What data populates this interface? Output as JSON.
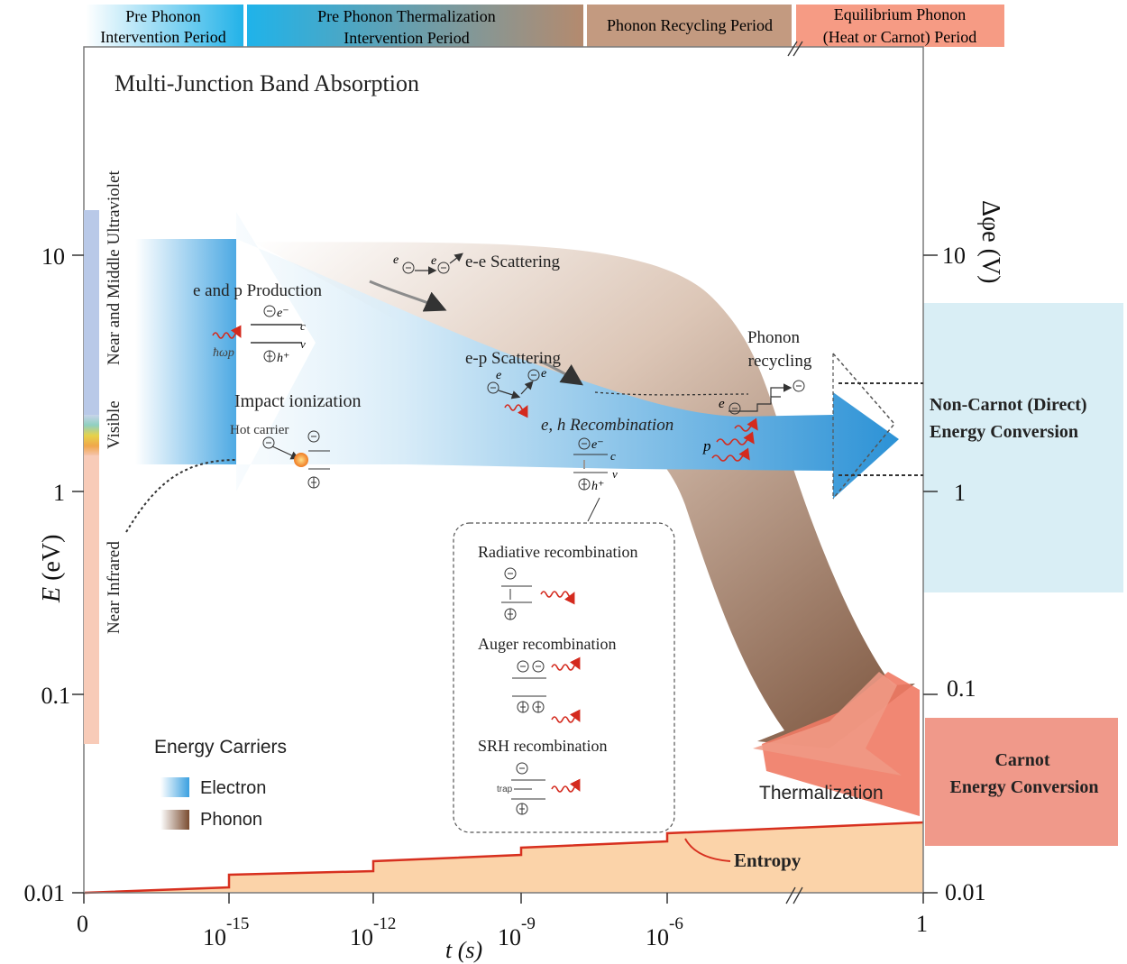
{
  "periods": [
    {
      "line1": "Pre Phonon",
      "line2": "Intervention Period"
    },
    {
      "line1": "Pre Phonon Thermalization",
      "line2": "Intervention Period"
    },
    {
      "line1": "Phonon Recycling Period",
      "line2": ""
    },
    {
      "line1": "Equilibrium Phonon",
      "line2": "(Heat or Carnot) Period"
    }
  ],
  "title": "Multi-Junction Band Absorption",
  "y_axis": {
    "label": "E (eV)",
    "label_var": "E",
    "label_unit": "(eV)",
    "ticks": [
      "10",
      "1",
      "0.1",
      "0.01"
    ]
  },
  "y2_axis": {
    "label": "Δφe (V)",
    "ticks": [
      "10",
      "1",
      "0.1",
      "0.01"
    ]
  },
  "x_axis": {
    "label": "t (s)",
    "ticks": [
      {
        "base": "0",
        "exp": ""
      },
      {
        "base": "10",
        "exp": "-15"
      },
      {
        "base": "10",
        "exp": "-12"
      },
      {
        "base": "10",
        "exp": "-9"
      },
      {
        "base": "10",
        "exp": "-6"
      },
      {
        "base": "1",
        "exp": ""
      }
    ]
  },
  "spectrum_bands": {
    "uv": "Near and Middle Ultraviolet",
    "visible": "Visible",
    "ir": "Near Infrared"
  },
  "labels": {
    "production": "e and p Production",
    "impact": "Impact ionization",
    "hot_carrier": "Hot carrier",
    "ee": "e-e Scattering",
    "ep": "e-p Scattering",
    "eh_recomb": "e, h Recombination",
    "phonon_recycling_1": "Phonon",
    "phonon_recycling_2": "recycling",
    "thermalization": "Thermalization",
    "entropy": "Entropy",
    "hw": "ħωp",
    "band_c": "c",
    "band_v": "v",
    "e_minus": "e⁻",
    "h_plus": "h⁺",
    "p_label": "p",
    "e_label": "e",
    "trap": "trap"
  },
  "recombination_box": {
    "radiative": "Radiative recombination",
    "auger": "Auger recombination",
    "srh": "SRH recombination"
  },
  "legend": {
    "title": "Energy Carriers",
    "items": [
      {
        "label": "Electron",
        "color": "#3a9ede"
      },
      {
        "label": "Phonon",
        "color": "#8a5a3a"
      }
    ]
  },
  "right_boxes": {
    "noncarnot_1": "Non-Carnot (Direct)",
    "noncarnot_2": "Energy Conversion",
    "carnot_1": "Carnot",
    "carnot_2": "Energy Conversion"
  },
  "colors": {
    "period1": "#2bb6e8",
    "period3": "#c3967a",
    "period4": "#f59c84",
    "electron": "#2f95d8",
    "phonon": "#7c4f33",
    "noncarnot_bg": "#d9eef5",
    "carnot_bg": "#f0998a",
    "entropy_fill": "#fbd3a9",
    "entropy_line": "#d7301f",
    "uv_band": "#b9c9e8",
    "ir_band": "#f8cbb8"
  }
}
